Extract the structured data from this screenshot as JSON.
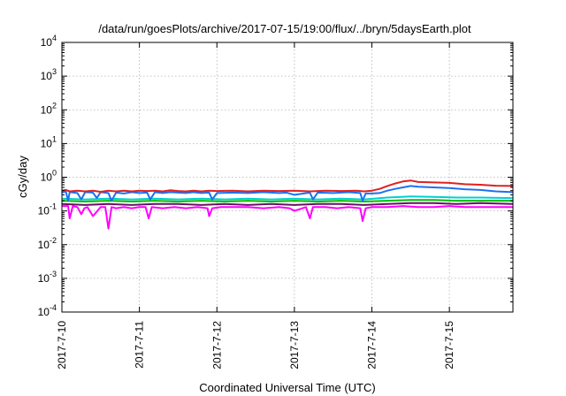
{
  "chart_data": {
    "type": "line",
    "title": "/data/run/goesPlots/archive/2017-07-15/19:00/flux/../bryn/5daysEarth.plot",
    "xlabel": "Coordinated Universal Time (UTC)",
    "ylabel": "cGy/day",
    "yscale": "log",
    "ylim": [
      0.0001,
      10000
    ],
    "xlim": [
      0,
      5.82
    ],
    "x_ticks": [
      {
        "value": 0,
        "label": "2017-7-10"
      },
      {
        "value": 1,
        "label": "2017-7-11"
      },
      {
        "value": 2,
        "label": "2017-7-12"
      },
      {
        "value": 3,
        "label": "2017-7-13"
      },
      {
        "value": 4,
        "label": "2017-7-14"
      },
      {
        "value": 5,
        "label": "2017-7-15"
      }
    ],
    "y_ticks": [
      {
        "value": 0.0001,
        "base": "10",
        "exp": "-4"
      },
      {
        "value": 0.001,
        "base": "10",
        "exp": "-3"
      },
      {
        "value": 0.01,
        "base": "10",
        "exp": "-2"
      },
      {
        "value": 0.1,
        "base": "10",
        "exp": "-1"
      },
      {
        "value": 1,
        "base": "10",
        "exp": "0"
      },
      {
        "value": 10,
        "base": "10",
        "exp": "1"
      },
      {
        "value": 100,
        "base": "10",
        "exp": "2"
      },
      {
        "value": 1000,
        "base": "10",
        "exp": "3"
      },
      {
        "value": 10000,
        "base": "10",
        "exp": "4"
      }
    ],
    "grid": true,
    "series": [
      {
        "color": "#ff00ff",
        "x": [
          0,
          0.08,
          0.1,
          0.14,
          0.2,
          0.25,
          0.29,
          0.33,
          0.4,
          0.5,
          0.56,
          0.6,
          0.64,
          0.7,
          0.8,
          0.9,
          1.0,
          1.08,
          1.12,
          1.16,
          1.3,
          1.45,
          1.6,
          1.75,
          1.88,
          1.9,
          1.94,
          2.05,
          2.2,
          2.4,
          2.6,
          2.8,
          2.94,
          3.0,
          3.15,
          3.2,
          3.24,
          3.4,
          3.55,
          3.7,
          3.85,
          3.88,
          3.92,
          4.0,
          4.2,
          4.4,
          4.6,
          4.8,
          5.0,
          5.2,
          5.4,
          5.6,
          5.82
        ],
        "values": [
          0.14,
          0.14,
          0.06,
          0.14,
          0.13,
          0.08,
          0.12,
          0.13,
          0.07,
          0.13,
          0.13,
          0.03,
          0.13,
          0.12,
          0.13,
          0.12,
          0.13,
          0.13,
          0.06,
          0.13,
          0.12,
          0.13,
          0.12,
          0.13,
          0.12,
          0.07,
          0.12,
          0.13,
          0.13,
          0.13,
          0.12,
          0.13,
          0.12,
          0.1,
          0.13,
          0.06,
          0.13,
          0.13,
          0.12,
          0.13,
          0.12,
          0.05,
          0.12,
          0.13,
          0.13,
          0.14,
          0.13,
          0.13,
          0.14,
          0.13,
          0.13,
          0.13,
          0.13
        ]
      },
      {
        "color": "#6a0d6a",
        "x": [
          0,
          0.3,
          0.6,
          0.9,
          1.2,
          1.5,
          1.8,
          2.1,
          2.4,
          2.7,
          3.0,
          3.3,
          3.6,
          3.9,
          4.2,
          4.5,
          4.8,
          5.1,
          5.4,
          5.82
        ],
        "values": [
          0.16,
          0.15,
          0.16,
          0.15,
          0.16,
          0.16,
          0.15,
          0.16,
          0.15,
          0.16,
          0.15,
          0.16,
          0.16,
          0.15,
          0.16,
          0.17,
          0.17,
          0.16,
          0.17,
          0.16
        ]
      },
      {
        "color": "#00c000",
        "x": [
          0,
          0.3,
          0.6,
          0.9,
          1.2,
          1.5,
          1.8,
          2.1,
          2.4,
          2.7,
          3.0,
          3.3,
          3.6,
          3.9,
          4.2,
          4.5,
          4.8,
          5.1,
          5.4,
          5.82
        ],
        "values": [
          0.2,
          0.19,
          0.2,
          0.19,
          0.2,
          0.19,
          0.2,
          0.19,
          0.2,
          0.19,
          0.2,
          0.19,
          0.2,
          0.19,
          0.2,
          0.21,
          0.21,
          0.2,
          0.2,
          0.2
        ]
      },
      {
        "color": "#00d0d0",
        "x": [
          0,
          0.3,
          0.6,
          0.9,
          1.2,
          1.5,
          1.8,
          2.1,
          2.4,
          2.7,
          3.0,
          3.3,
          3.6,
          3.9,
          4.2,
          4.5,
          4.8,
          5.1,
          5.4,
          5.82
        ],
        "values": [
          0.23,
          0.22,
          0.23,
          0.22,
          0.23,
          0.22,
          0.23,
          0.22,
          0.23,
          0.22,
          0.23,
          0.22,
          0.23,
          0.22,
          0.25,
          0.27,
          0.26,
          0.25,
          0.25,
          0.24
        ]
      },
      {
        "color": "#1e70f0",
        "x": [
          0,
          0.05,
          0.08,
          0.1,
          0.2,
          0.25,
          0.3,
          0.4,
          0.45,
          0.5,
          0.6,
          0.64,
          0.7,
          0.8,
          0.9,
          1.0,
          1.1,
          1.14,
          1.2,
          1.3,
          1.4,
          1.5,
          1.6,
          1.7,
          1.8,
          1.9,
          1.94,
          2.0,
          2.2,
          2.4,
          2.6,
          2.8,
          2.9,
          3.0,
          3.2,
          3.24,
          3.3,
          3.5,
          3.7,
          3.85,
          3.88,
          3.92,
          4.0,
          4.1,
          4.2,
          4.3,
          4.4,
          4.5,
          4.6,
          4.8,
          5.0,
          5.2,
          5.4,
          5.6,
          5.82
        ],
        "values": [
          0.35,
          0.38,
          0.2,
          0.36,
          0.34,
          0.22,
          0.36,
          0.35,
          0.24,
          0.36,
          0.34,
          0.2,
          0.35,
          0.33,
          0.36,
          0.34,
          0.35,
          0.22,
          0.36,
          0.34,
          0.36,
          0.35,
          0.34,
          0.36,
          0.34,
          0.35,
          0.22,
          0.34,
          0.35,
          0.34,
          0.36,
          0.34,
          0.35,
          0.3,
          0.35,
          0.22,
          0.35,
          0.34,
          0.36,
          0.34,
          0.2,
          0.33,
          0.33,
          0.34,
          0.4,
          0.45,
          0.5,
          0.55,
          0.52,
          0.5,
          0.48,
          0.44,
          0.42,
          0.38,
          0.36
        ]
      },
      {
        "color": "#e02020",
        "x": [
          0,
          0.05,
          0.1,
          0.2,
          0.3,
          0.4,
          0.5,
          0.6,
          0.7,
          0.8,
          0.9,
          1.0,
          1.1,
          1.2,
          1.3,
          1.4,
          1.5,
          1.6,
          1.7,
          1.8,
          1.9,
          2.0,
          2.2,
          2.4,
          2.6,
          2.8,
          3.0,
          3.2,
          3.4,
          3.6,
          3.8,
          3.9,
          4.0,
          4.1,
          4.2,
          4.3,
          4.4,
          4.5,
          4.6,
          4.8,
          5.0,
          5.2,
          5.4,
          5.6,
          5.82
        ],
        "values": [
          0.4,
          0.42,
          0.38,
          0.4,
          0.38,
          0.4,
          0.37,
          0.4,
          0.38,
          0.4,
          0.38,
          0.4,
          0.39,
          0.4,
          0.38,
          0.41,
          0.39,
          0.38,
          0.4,
          0.38,
          0.4,
          0.39,
          0.4,
          0.38,
          0.4,
          0.39,
          0.4,
          0.38,
          0.4,
          0.39,
          0.4,
          0.38,
          0.4,
          0.45,
          0.55,
          0.65,
          0.75,
          0.8,
          0.72,
          0.7,
          0.68,
          0.62,
          0.6,
          0.56,
          0.55
        ]
      }
    ]
  }
}
